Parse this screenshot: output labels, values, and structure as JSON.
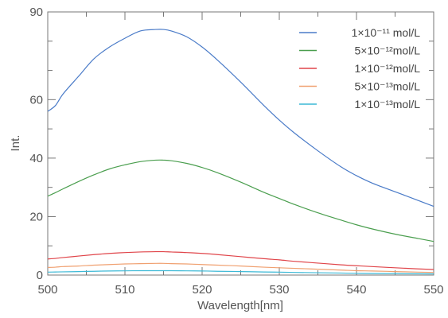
{
  "chart_data": {
    "type": "line",
    "title": "",
    "xlabel": "Wavelength[nm]",
    "ylabel": "Int.",
    "xlim": [
      500,
      550
    ],
    "ylim": [
      0,
      90
    ],
    "x_ticks": [
      500,
      510,
      520,
      530,
      540,
      550
    ],
    "x_tick_labels": [
      "500",
      "510",
      "520",
      "530",
      "540",
      "550"
    ],
    "y_ticks": [
      0,
      20,
      40,
      60,
      90
    ],
    "y_tick_labels": [
      "0",
      "20",
      "40",
      "60",
      "90"
    ],
    "grid": false,
    "legend_position": "top-right",
    "x": [
      500,
      501,
      502,
      504,
      506,
      508,
      510,
      512,
      514,
      515,
      516,
      518,
      520,
      522,
      525,
      528,
      530,
      532,
      535,
      538,
      540,
      542,
      545,
      548,
      550
    ],
    "series": [
      {
        "name": "1×10⁻¹¹ mol/L",
        "color": "#4a7bc8",
        "values": [
          56,
          58,
          62,
          68,
          74,
          78,
          81,
          83.5,
          84,
          84,
          83.5,
          81.5,
          78,
          73.5,
          66,
          58,
          53,
          48.5,
          42.5,
          37,
          34,
          31.5,
          28.5,
          25.5,
          23.5
        ]
      },
      {
        "name": "5×10⁻¹²mol/L",
        "color": "#4a9e4e",
        "values": [
          27,
          28.2,
          29.5,
          32,
          34.3,
          36.3,
          37.7,
          38.8,
          39.3,
          39.3,
          39.1,
          38.2,
          36.8,
          35,
          31.8,
          28.3,
          26.2,
          24.1,
          21.3,
          18.8,
          17.2,
          15.8,
          14,
          12.5,
          11.5
        ]
      },
      {
        "name": "1×10⁻¹²mol/L",
        "color": "#e0454a",
        "values": [
          5.5,
          5.7,
          6,
          6.5,
          7,
          7.4,
          7.7,
          7.9,
          8,
          8,
          7.9,
          7.7,
          7.4,
          7,
          6.3,
          5.6,
          5.2,
          4.7,
          4.1,
          3.5,
          3.2,
          2.9,
          2.5,
          2.1,
          1.9
        ]
      },
      {
        "name": "5×10⁻¹³mol/L",
        "color": "#f0a070",
        "values": [
          2.6,
          2.7,
          2.9,
          3.1,
          3.4,
          3.6,
          3.8,
          3.9,
          4,
          4,
          3.9,
          3.8,
          3.6,
          3.4,
          3.1,
          2.7,
          2.5,
          2.3,
          2,
          1.7,
          1.5,
          1.4,
          1.2,
          1,
          0.9
        ]
      },
      {
        "name": "1×10⁻¹³mol/L",
        "color": "#3cb9d6",
        "values": [
          1,
          1.05,
          1.1,
          1.2,
          1.3,
          1.4,
          1.45,
          1.5,
          1.5,
          1.5,
          1.5,
          1.45,
          1.4,
          1.3,
          1.2,
          1.05,
          1,
          0.9,
          0.8,
          0.7,
          0.6,
          0.55,
          0.5,
          0.45,
          0.4
        ]
      }
    ]
  }
}
